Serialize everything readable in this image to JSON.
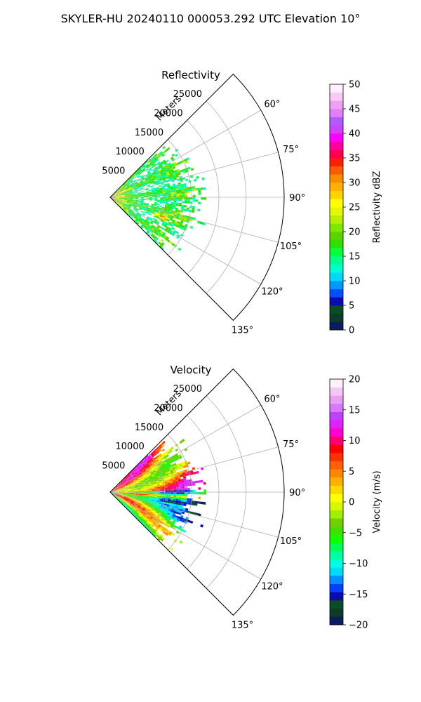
{
  "figure": {
    "title": "SKYLER-HU  20240110  000053.292 UTC Elevation 10°"
  },
  "chart_data": [
    {
      "type": "heatmap",
      "projection": "polar-sector",
      "title": "Reflectivity",
      "range_label": "Meters",
      "range_ticks": [
        5000,
        10000,
        15000,
        20000,
        25000
      ],
      "range_max": 32000,
      "azimuth_range_deg": [
        45,
        135
      ],
      "azimuth_ticks": [
        60,
        75,
        90,
        105,
        120,
        135
      ],
      "azimuth_tick_labels": [
        "60°",
        "75°",
        "90°",
        "105°",
        "120°",
        "135°"
      ],
      "grid": true,
      "data_extent_m": 20000,
      "colorbar": {
        "label": "Reflectivity dBZ",
        "min": 0,
        "max": 50,
        "ticks": [
          0,
          5,
          10,
          15,
          20,
          25,
          30,
          35,
          40,
          45,
          50
        ],
        "tick_labels": [
          "0",
          "5",
          "10",
          "15",
          "20",
          "25",
          "30",
          "35",
          "40",
          "45",
          "50"
        ],
        "colors": [
          "#0b1d5e",
          "#103a2a",
          "#0a4d24",
          "#0b0bb0",
          "#0050ff",
          "#0099ff",
          "#00d8ff",
          "#00ffd2",
          "#00ff8c",
          "#00ff40",
          "#30e000",
          "#58d400",
          "#80e800",
          "#b4f000",
          "#e6f800",
          "#ffff00",
          "#ffd200",
          "#ffb000",
          "#ff8c00",
          "#ff5a00",
          "#ff2000",
          "#ff0050",
          "#ff00a0",
          "#ff00ff",
          "#d040ff",
          "#b05cff",
          "#e080ff",
          "#f0a0f0",
          "#f8c8f8",
          "#fff0ff"
        ]
      }
    },
    {
      "type": "heatmap",
      "projection": "polar-sector",
      "title": "Velocity",
      "range_label": "Meters",
      "range_ticks": [
        5000,
        10000,
        15000,
        20000,
        25000
      ],
      "range_max": 32000,
      "azimuth_range_deg": [
        45,
        135
      ],
      "azimuth_ticks": [
        60,
        75,
        90,
        105,
        120,
        135
      ],
      "azimuth_tick_labels": [
        "60°",
        "75°",
        "90°",
        "105°",
        "120°",
        "135°"
      ],
      "grid": true,
      "data_extent_m": 20000,
      "colorbar": {
        "label": "Velocity (m/s)",
        "min": -20,
        "max": 20,
        "ticks": [
          -20,
          -15,
          -10,
          -5,
          0,
          5,
          10,
          15,
          20
        ],
        "tick_labels": [
          "−20",
          "−15",
          "−10",
          "−5",
          "0",
          "5",
          "10",
          "15",
          "20"
        ],
        "colors": [
          "#0b1d5e",
          "#103a2a",
          "#0a4d24",
          "#0b0bb0",
          "#0040ff",
          "#0090ff",
          "#00d8ff",
          "#00ffe0",
          "#00ffa0",
          "#00ff50",
          "#10ff00",
          "#40e000",
          "#70d000",
          "#a0f000",
          "#d8f800",
          "#ffff00",
          "#ffd800",
          "#ffb000",
          "#ff8800",
          "#ff6000",
          "#ff3000",
          "#ff0000",
          "#ff0070",
          "#ff00d0",
          "#e020ff",
          "#c040ff",
          "#d878ff",
          "#e8a0f0",
          "#f4c8f4",
          "#fff0ff"
        ]
      }
    }
  ]
}
